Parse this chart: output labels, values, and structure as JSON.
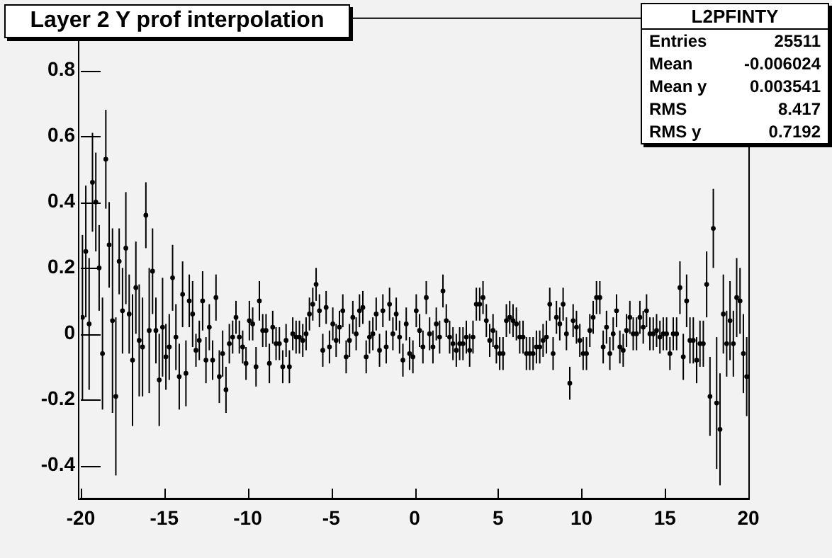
{
  "chart_data": {
    "type": "scatter",
    "title": "Layer 2 Y prof interpolation",
    "annotations": [
      "L2PFINTY",
      "Entries 25511",
      "Mean -0.006024",
      "Mean y 0.003541",
      "RMS 8.417",
      "RMS y 0.7192"
    ],
    "xlim": [
      -20,
      20
    ],
    "xticks": [
      -20,
      -15,
      -10,
      -5,
      0,
      5,
      10,
      15,
      20
    ],
    "ylim": [
      -0.5,
      0.96
    ],
    "yticks": [
      -0.4,
      -0.2,
      0,
      0.2,
      0.4,
      0.6,
      0.8
    ],
    "grid": false,
    "legend": false,
    "marker": "circle",
    "x": [
      -19.9,
      -19.7,
      -19.5,
      -19.3,
      -19.1,
      -18.9,
      -18.7,
      -18.5,
      -18.3,
      -18.1,
      -17.9,
      -17.7,
      -17.5,
      -17.3,
      -17.1,
      -16.9,
      -16.7,
      -16.5,
      -16.3,
      -16.1,
      -15.9,
      -15.7,
      -15.5,
      -15.3,
      -15.1,
      -14.9,
      -14.7,
      -14.5,
      -14.3,
      -14.1,
      -13.9,
      -13.7,
      -13.5,
      -13.3,
      -13.1,
      -12.9,
      -12.7,
      -12.5,
      -12.3,
      -12.1,
      -11.9,
      -11.7,
      -11.5,
      -11.3,
      -11.1,
      -10.9,
      -10.7,
      -10.5,
      -10.3,
      -10.1,
      -9.9,
      -9.7,
      -9.5,
      -9.3,
      -9.1,
      -8.9,
      -8.7,
      -8.5,
      -8.3,
      -8.1,
      -7.9,
      -7.7,
      -7.5,
      -7.3,
      -7.1,
      -6.9,
      -6.7,
      -6.5,
      -6.3,
      -6.1,
      -5.9,
      -5.7,
      -5.5,
      -5.3,
      -5.1,
      -4.9,
      -4.7,
      -4.5,
      -4.3,
      -4.1,
      -3.9,
      -3.7,
      -3.5,
      -3.3,
      -3.1,
      -2.9,
      -2.7,
      -2.5,
      -2.3,
      -2.1,
      -1.9,
      -1.7,
      -1.5,
      -1.3,
      -1.1,
      -0.9,
      -0.7,
      -0.5,
      -0.3,
      -0.1,
      0.1,
      0.3,
      0.5,
      0.7,
      0.9,
      1.1,
      1.3,
      1.5,
      1.7,
      1.9,
      2.1,
      2.3,
      2.5,
      2.7,
      2.9,
      3.1,
      3.3,
      3.5,
      3.7,
      3.9,
      4.1,
      4.3,
      4.5,
      4.7,
      4.9,
      5.1,
      5.3,
      5.5,
      5.7,
      5.9,
      6.1,
      6.3,
      6.5,
      6.7,
      6.9,
      7.1,
      7.3,
      7.5,
      7.7,
      7.9,
      8.1,
      8.3,
      8.5,
      8.7,
      8.9,
      9.1,
      9.3,
      9.5,
      9.7,
      9.9,
      10.1,
      10.3,
      10.5,
      10.7,
      10.9,
      11.1,
      11.3,
      11.5,
      11.7,
      11.9,
      12.1,
      12.3,
      12.5,
      12.7,
      12.9,
      13.1,
      13.3,
      13.5,
      13.7,
      13.9,
      14.1,
      14.3,
      14.5,
      14.7,
      14.9,
      15.1,
      15.3,
      15.5,
      15.7,
      15.9,
      16.1,
      16.3,
      16.5,
      16.7,
      16.9,
      17.1,
      17.3,
      17.5,
      17.7,
      17.9,
      18.1,
      18.3,
      18.5,
      18.7,
      18.9,
      19.1,
      19.3,
      19.5,
      19.7,
      19.9
    ],
    "values": [
      0.05,
      0.25,
      0.03,
      0.46,
      0.4,
      0.2,
      -0.06,
      0.53,
      0.27,
      0.04,
      -0.19,
      0.22,
      0.07,
      0.26,
      0.06,
      -0.08,
      0.14,
      -0.02,
      -0.04,
      0.36,
      0.01,
      0.19,
      0.01,
      -0.14,
      0.02,
      -0.07,
      -0.04,
      0.17,
      -0.01,
      -0.13,
      0.12,
      -0.12,
      0.1,
      0.06,
      -0.05,
      -0.02,
      0.1,
      -0.08,
      0.02,
      -0.08,
      0.11,
      -0.13,
      -0.06,
      -0.17,
      -0.03,
      -0.01,
      0.05,
      -0.01,
      -0.04,
      -0.09,
      0.04,
      0.03,
      -0.1,
      0.1,
      0.01,
      0.01,
      -0.09,
      0.02,
      -0.03,
      -0.03,
      -0.1,
      -0.02,
      -0.1,
      0.0,
      -0.01,
      -0.01,
      -0.02,
      0.0,
      0.06,
      0.09,
      0.15,
      0.07,
      -0.05,
      0.08,
      -0.04,
      0.03,
      -0.02,
      0.02,
      0.07,
      -0.07,
      -0.02,
      0.05,
      0.0,
      0.07,
      0.08,
      -0.07,
      -0.01,
      0.0,
      0.06,
      -0.05,
      0.07,
      -0.04,
      0.09,
      0.0,
      0.06,
      -0.01,
      -0.08,
      0.03,
      -0.06,
      -0.07,
      0.07,
      0.01,
      -0.04,
      0.11,
      0.0,
      -0.04,
      0.03,
      -0.01,
      0.13,
      0.04,
      -0.01,
      -0.03,
      -0.05,
      -0.03,
      -0.03,
      -0.01,
      -0.05,
      -0.01,
      0.09,
      0.09,
      0.11,
      0.04,
      -0.02,
      0.01,
      -0.04,
      -0.06,
      -0.06,
      0.04,
      0.05,
      0.04,
      0.03,
      -0.01,
      -0.01,
      -0.06,
      -0.06,
      -0.06,
      -0.04,
      -0.04,
      -0.02,
      -0.01,
      0.09,
      -0.06,
      0.05,
      0.03,
      0.09,
      0.0,
      -0.15,
      0.04,
      0.02,
      -0.02,
      -0.06,
      -0.06,
      0.01,
      0.05,
      0.11,
      0.11,
      -0.04,
      0.02,
      -0.06,
      0.0,
      0.07,
      -0.04,
      -0.05,
      0.01,
      0.05,
      0.0,
      0.0,
      0.05,
      0.02,
      0.07,
      0.0,
      0.0,
      0.01,
      -0.01,
      0.0,
      0.0,
      -0.06,
      0.0,
      0.0,
      0.14,
      -0.07,
      0.1,
      -0.02,
      -0.02,
      -0.08,
      -0.03,
      -0.03,
      0.15,
      -0.19,
      0.32,
      -0.21,
      -0.29,
      0.06,
      -0.03,
      0.04,
      -0.03,
      0.11,
      0.1,
      -0.06,
      -0.13
    ],
    "errors": [
      0.25,
      0.2,
      0.2,
      0.15,
      0.15,
      0.13,
      0.17,
      0.15,
      0.13,
      0.28,
      0.24,
      0.1,
      0.13,
      0.17,
      0.12,
      0.2,
      0.14,
      0.17,
      0.15,
      0.1,
      0.19,
      0.13,
      0.1,
      0.14,
      0.15,
      0.1,
      0.1,
      0.1,
      0.1,
      0.1,
      0.1,
      0.1,
      0.08,
      0.1,
      0.05,
      0.06,
      0.09,
      0.07,
      0.07,
      0.06,
      0.07,
      0.08,
      0.07,
      0.07,
      0.06,
      0.05,
      0.05,
      0.05,
      0.05,
      0.05,
      0.06,
      0.05,
      0.06,
      0.06,
      0.05,
      0.05,
      0.06,
      0.05,
      0.05,
      0.05,
      0.05,
      0.05,
      0.05,
      0.05,
      0.05,
      0.05,
      0.05,
      0.05,
      0.05,
      0.05,
      0.05,
      0.05,
      0.05,
      0.05,
      0.05,
      0.05,
      0.05,
      0.05,
      0.05,
      0.05,
      0.05,
      0.05,
      0.05,
      0.05,
      0.05,
      0.05,
      0.05,
      0.05,
      0.05,
      0.05,
      0.05,
      0.05,
      0.05,
      0.05,
      0.05,
      0.05,
      0.05,
      0.05,
      0.05,
      0.05,
      0.05,
      0.05,
      0.05,
      0.05,
      0.05,
      0.05,
      0.05,
      0.05,
      0.05,
      0.05,
      0.05,
      0.05,
      0.05,
      0.05,
      0.05,
      0.05,
      0.05,
      0.05,
      0.05,
      0.05,
      0.05,
      0.05,
      0.05,
      0.05,
      0.05,
      0.05,
      0.05,
      0.05,
      0.05,
      0.05,
      0.05,
      0.05,
      0.05,
      0.05,
      0.05,
      0.05,
      0.05,
      0.05,
      0.05,
      0.05,
      0.05,
      0.05,
      0.05,
      0.05,
      0.05,
      0.05,
      0.05,
      0.05,
      0.05,
      0.05,
      0.05,
      0.05,
      0.05,
      0.05,
      0.05,
      0.05,
      0.05,
      0.05,
      0.05,
      0.05,
      0.05,
      0.05,
      0.05,
      0.05,
      0.05,
      0.05,
      0.05,
      0.05,
      0.05,
      0.05,
      0.05,
      0.05,
      0.05,
      0.05,
      0.05,
      0.05,
      0.05,
      0.05,
      0.05,
      0.08,
      0.07,
      0.08,
      0.07,
      0.07,
      0.07,
      0.07,
      0.07,
      0.1,
      0.12,
      0.12,
      0.2,
      0.17,
      0.12,
      0.1,
      0.12,
      0.1,
      0.12,
      0.1,
      0.12,
      0.12
    ],
    "xerrors": [
      0.1,
      0.1,
      0.1,
      0.1,
      0.1,
      0.1,
      0.1,
      0.1,
      0.1,
      0.1,
      0.1,
      0.1,
      0.1,
      0.1,
      0.1,
      0.1,
      0.1,
      0.1,
      0.1,
      0.1,
      0.1,
      0.1,
      0.1,
      0.1,
      0.1,
      0.1,
      0.1,
      0.1,
      0.1,
      0.1,
      0.1,
      0.1,
      0.1,
      0.1,
      0.1,
      0.1,
      0.1,
      0.1,
      0.1,
      0.1,
      0.1,
      0.1,
      0.1,
      0.1,
      0.1,
      0.1,
      0.1,
      0.1,
      0.1,
      0.1,
      0.1,
      0.1,
      0.1,
      0.1,
      0.1,
      0.1,
      0.1,
      0.1,
      0.1,
      0.1,
      0.1,
      0.1,
      0.1,
      0.1,
      0.1,
      0.1,
      0.1,
      0.1,
      0.1,
      0.1,
      0.1,
      0.1,
      0.1,
      0.1,
      0.1,
      0.1,
      0.1,
      0.1,
      0.1,
      0.1,
      0.1,
      0.1,
      0.1,
      0.1,
      0.1,
      0.1,
      0.1,
      0.1,
      0.1,
      0.1,
      0.1,
      0.1,
      0.1,
      0.1,
      0.1,
      0.1,
      0.1,
      0.1,
      0.1,
      0.1,
      0.1,
      0.1,
      0.1,
      0.1,
      0.1,
      0.1,
      0.1,
      0.1,
      0.1,
      0.1,
      0.1,
      0.1,
      0.1,
      0.1,
      0.1,
      0.1,
      0.1,
      0.1,
      0.1,
      0.1,
      0.1,
      0.1,
      0.1,
      0.1,
      0.1,
      0.1,
      0.1,
      0.1,
      0.1,
      0.1,
      0.1,
      0.1,
      0.1,
      0.1,
      0.1,
      0.1,
      0.1,
      0.1,
      0.1,
      0.1,
      0.1,
      0.1,
      0.1,
      0.1,
      0.1,
      0.1,
      0.1,
      0.1,
      0.1,
      0.1,
      0.1,
      0.1,
      0.1,
      0.1,
      0.1,
      0.1,
      0.1,
      0.1,
      0.1,
      0.1,
      0.1,
      0.1,
      0.1,
      0.1,
      0.1,
      0.1,
      0.1,
      0.1,
      0.1,
      0.1,
      0.1,
      0.1,
      0.1,
      0.1,
      0.1,
      0.1,
      0.1,
      0.1,
      0.1,
      0.1,
      0.1,
      0.1,
      0.1,
      0.1,
      0.1,
      0.1,
      0.1,
      0.1,
      0.1,
      0.1,
      0.1,
      0.1,
      0.1,
      0.1,
      0.1,
      0.1,
      0.1,
      0.1,
      0.1,
      0.1
    ]
  }
}
